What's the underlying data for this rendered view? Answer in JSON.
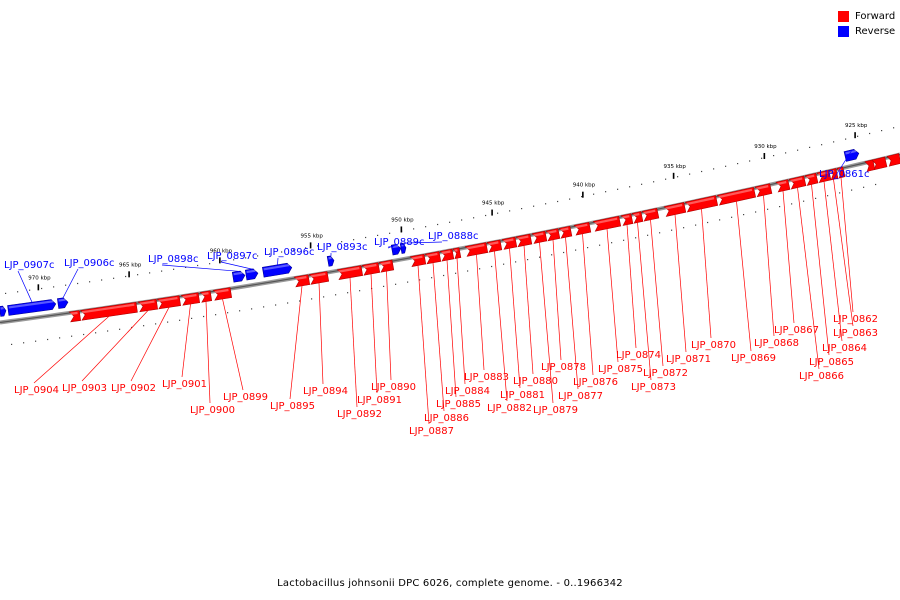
{
  "legend": {
    "forward_label": "Forward",
    "reverse_label": "Reverse",
    "forward_color": "#ff0000",
    "reverse_color": "#0000ff"
  },
  "caption": "Lactobacillus johnsonii DPC 6026, complete genome. - 0..1966342",
  "ticks": [
    {
      "label": "925 kbp",
      "kbp": 925
    },
    {
      "label": "930 kbp",
      "kbp": 930
    },
    {
      "label": "935 kbp",
      "kbp": 935
    },
    {
      "label": "940 kbp",
      "kbp": 940
    },
    {
      "label": "945 kbp",
      "kbp": 945
    },
    {
      "label": "950 kbp",
      "kbp": 950
    },
    {
      "label": "955 kbp",
      "kbp": 955
    },
    {
      "label": "960 kbp",
      "kbp": 960
    },
    {
      "label": "965 kbp",
      "kbp": 965
    },
    {
      "label": "970 kbp",
      "kbp": 970
    }
  ],
  "genes": [
    {
      "label": "LJP_0861c",
      "strand": "reverse"
    },
    {
      "label": "LJP_0862",
      "strand": "forward"
    },
    {
      "label": "LJP_0863",
      "strand": "forward"
    },
    {
      "label": "LJP_0864",
      "strand": "forward"
    },
    {
      "label": "LJP_0865",
      "strand": "forward"
    },
    {
      "label": "LJP_0866",
      "strand": "forward"
    },
    {
      "label": "LJP_0867",
      "strand": "forward"
    },
    {
      "label": "LJP_0868",
      "strand": "forward"
    },
    {
      "label": "LJP_0869",
      "strand": "forward"
    },
    {
      "label": "LJP_0870",
      "strand": "forward"
    },
    {
      "label": "LJP_0871",
      "strand": "forward"
    },
    {
      "label": "LJP_0872",
      "strand": "forward"
    },
    {
      "label": "LJP_0873",
      "strand": "forward"
    },
    {
      "label": "LJP_0874",
      "strand": "forward"
    },
    {
      "label": "LJP_0875",
      "strand": "forward"
    },
    {
      "label": "LJP_0876",
      "strand": "forward"
    },
    {
      "label": "LJP_0877",
      "strand": "forward"
    },
    {
      "label": "LJP_0878",
      "strand": "forward"
    },
    {
      "label": "LJP_0879",
      "strand": "forward"
    },
    {
      "label": "LJP_0880",
      "strand": "forward"
    },
    {
      "label": "LJP_0881",
      "strand": "forward"
    },
    {
      "label": "LJP_0882",
      "strand": "forward"
    },
    {
      "label": "LJP_0883",
      "strand": "forward"
    },
    {
      "label": "LJP_0884",
      "strand": "forward"
    },
    {
      "label": "LJP_0885",
      "strand": "forward"
    },
    {
      "label": "LJP_0886",
      "strand": "forward"
    },
    {
      "label": "LJP_0887",
      "strand": "forward"
    },
    {
      "label": "LJP_0888c",
      "strand": "reverse"
    },
    {
      "label": "LJP_0889c",
      "strand": "reverse"
    },
    {
      "label": "LJP_0890",
      "strand": "forward"
    },
    {
      "label": "LJP_0891",
      "strand": "forward"
    },
    {
      "label": "LJP_0892",
      "strand": "forward"
    },
    {
      "label": "LJP_0893c",
      "strand": "reverse"
    },
    {
      "label": "LJP_0894",
      "strand": "forward"
    },
    {
      "label": "LJP_0895",
      "strand": "forward"
    },
    {
      "label": "LJP_0896c",
      "strand": "reverse"
    },
    {
      "label": "LJP_0897c",
      "strand": "reverse"
    },
    {
      "label": "LJP_0898c",
      "strand": "reverse"
    },
    {
      "label": "LJP_0899",
      "strand": "forward"
    },
    {
      "label": "LJP_0900",
      "strand": "forward"
    },
    {
      "label": "LJP_0901",
      "strand": "forward"
    },
    {
      "label": "LJP_0902",
      "strand": "forward"
    },
    {
      "label": "LJP_0903",
      "strand": "forward"
    },
    {
      "label": "LJP_0904",
      "strand": "forward"
    },
    {
      "label": "LJP_0906c",
      "strand": "reverse"
    },
    {
      "label": "LJP_0907c",
      "strand": "reverse"
    }
  ]
}
